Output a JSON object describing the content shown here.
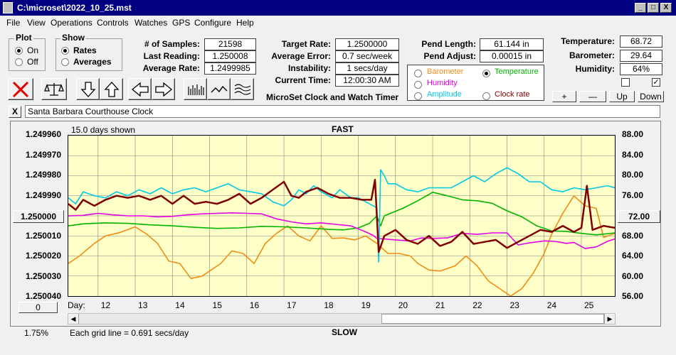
{
  "window": {
    "title": "C:\\microset\\2022_10_25.mst",
    "min": "_",
    "max": "□",
    "close": "X"
  },
  "menu": [
    "File",
    "View",
    "Operations",
    "Controls",
    "Watches",
    "GPS",
    "Configure",
    "Help"
  ],
  "plot_group": {
    "label": "Plot",
    "on": "On",
    "off": "Off",
    "selected": "On"
  },
  "show_group": {
    "label": "Show",
    "rates": "Rates",
    "averages": "Averages",
    "selected": "Rates"
  },
  "stats": {
    "samples_label": "# of Samples:",
    "samples": "21598",
    "last_label": "Last Reading:",
    "last": "1.250008",
    "avg_label": "Average Rate:",
    "avg": "1.2499985",
    "target_label": "Target Rate:",
    "target": "1.2500000",
    "error_label": "Average Error:",
    "error": "0.7 sec/week",
    "instab_label": "Instability:",
    "instab": "1 secs/day",
    "time_label": "Current Time:",
    "time": "12:00:30 AM",
    "pend_label": "Pend Length:",
    "pend": "61.144 in",
    "adjust_label": "Pend Adjust:",
    "adjust": "0.00015 in",
    "temp_label": "Temperature:",
    "temp": "68.72",
    "baro_label": "Barometer:",
    "baro": "29.64",
    "hum_label": "Humidity:",
    "hum": "64%"
  },
  "app_name": "MicroSet Clock and Watch Timer",
  "sensor_options": {
    "barometer": "Barometer",
    "temperature": "Temperature",
    "humidity": "Humidity",
    "amplitude": "Amplitude",
    "clockrate": "Clock rate",
    "selected": "Temperature",
    "colors": {
      "barometer": "#f08c14",
      "temperature": "#00b400",
      "humidity": "#e600e6",
      "amplitude": "#00c8e6",
      "clockrate": "#800000"
    }
  },
  "scale_buttons": {
    "plus": "+",
    "minus": "—",
    "up": "Up",
    "down": "Down"
  },
  "watch_name": "Santa Barbara Courthouse Clock",
  "watch_close": "X",
  "chart": {
    "days_shown": "15.0 days shown",
    "top_label": "FAST",
    "bottom_label": "SLOW",
    "grid_note": "Each grid line = 0.691 secs/day",
    "percent": "1.75%",
    "day_label": "Day:",
    "left_button": "1.250000",
    "right_button": "72.00",
    "bottom_button": "0"
  },
  "chart_data": {
    "type": "line",
    "left_axis": {
      "ticks": [
        "1.249960",
        "1.249970",
        "1.249980",
        "1.249990",
        "1.250000",
        "1.250010",
        "1.250020",
        "1.250030",
        "1.250040"
      ],
      "range": [
        1.24996,
        1.25004
      ]
    },
    "right_axis": {
      "ticks": [
        "88.00",
        "84.00",
        "80.00",
        "76.00",
        "72.00",
        "68.00",
        "64.00",
        "60.00",
        "56.00"
      ],
      "range": [
        88,
        56
      ]
    },
    "x_ticks": [
      "12",
      "13",
      "14",
      "15",
      "16",
      "17",
      "18",
      "19",
      "20",
      "21",
      "22",
      "23",
      "24",
      "25"
    ],
    "x_range": [
      11.2,
      25.9
    ],
    "series": [
      {
        "name": "Barometer",
        "color": "#f08c14",
        "values": [
          [
            11.2,
            62.5
          ],
          [
            11.5,
            64
          ],
          [
            11.9,
            66.5
          ],
          [
            12.2,
            68
          ],
          [
            12.6,
            68.7
          ],
          [
            13.0,
            69.8
          ],
          [
            13.3,
            68.4
          ],
          [
            13.6,
            66.5
          ],
          [
            13.9,
            63
          ],
          [
            14.2,
            62.5
          ],
          [
            14.5,
            59.5
          ],
          [
            14.8,
            60
          ],
          [
            15.1,
            61.5
          ],
          [
            15.3,
            62.5
          ],
          [
            15.6,
            65
          ],
          [
            15.9,
            64.5
          ],
          [
            16.2,
            62.5
          ],
          [
            16.5,
            66.5
          ],
          [
            16.8,
            68.5
          ],
          [
            17.1,
            70
          ],
          [
            17.4,
            68
          ],
          [
            17.7,
            67
          ],
          [
            18.0,
            70
          ],
          [
            18.3,
            67.5
          ],
          [
            18.6,
            67.6
          ],
          [
            18.9,
            67.2
          ],
          [
            19.2,
            68
          ],
          [
            19.5,
            66.5
          ],
          [
            19.8,
            64.5
          ],
          [
            20.1,
            64.5
          ],
          [
            20.4,
            64
          ],
          [
            20.6,
            62.5
          ],
          [
            20.9,
            61.2
          ],
          [
            21.2,
            61
          ],
          [
            21.6,
            62
          ],
          [
            21.9,
            64
          ],
          [
            22.2,
            62
          ],
          [
            22.5,
            59
          ],
          [
            22.8,
            57.5
          ],
          [
            23.1,
            56
          ],
          [
            23.4,
            57.5
          ],
          [
            23.7,
            60.5
          ],
          [
            24.0,
            64.5
          ],
          [
            24.2,
            68.3
          ],
          [
            24.5,
            72.5
          ],
          [
            24.8,
            76
          ],
          [
            25.1,
            74
          ],
          [
            25.4,
            73.5
          ],
          [
            25.6,
            67.7
          ],
          [
            25.9,
            68.5
          ]
        ]
      },
      {
        "name": "Temperature",
        "color": "#00b400",
        "values": [
          [
            11.2,
            70
          ],
          [
            11.6,
            70.4
          ],
          [
            12.2,
            70.6
          ],
          [
            12.8,
            70.5
          ],
          [
            13.4,
            70.2
          ],
          [
            14.0,
            70
          ],
          [
            14.6,
            69.7
          ],
          [
            15.2,
            69.5
          ],
          [
            15.8,
            69.6
          ],
          [
            16.4,
            69.9
          ],
          [
            17.0,
            69.8
          ],
          [
            17.6,
            69.6
          ],
          [
            18.2,
            69.3
          ],
          [
            18.6,
            69.2
          ],
          [
            19.0,
            69.6
          ],
          [
            19.3,
            70.5
          ],
          [
            19.5,
            72
          ],
          [
            19.6,
            70
          ],
          [
            19.7,
            72
          ],
          [
            20.2,
            73.5
          ],
          [
            20.6,
            75
          ],
          [
            21.0,
            76.7
          ],
          [
            21.4,
            76
          ],
          [
            21.8,
            75.2
          ],
          [
            22.2,
            75
          ],
          [
            22.6,
            74.5
          ],
          [
            23.0,
            73
          ],
          [
            23.4,
            71.8
          ],
          [
            23.8,
            70
          ],
          [
            24.2,
            69
          ],
          [
            24.6,
            68.9
          ],
          [
            25.0,
            68.5
          ],
          [
            25.4,
            68.2
          ],
          [
            25.9,
            68.6
          ]
        ]
      },
      {
        "name": "Humidity",
        "color": "#e600e6",
        "values": [
          [
            11.2,
            72
          ],
          [
            11.6,
            72.1
          ],
          [
            12.0,
            72.5
          ],
          [
            12.4,
            72.2
          ],
          [
            12.8,
            72
          ],
          [
            13.2,
            72
          ],
          [
            13.6,
            71.8
          ],
          [
            14.0,
            71.9
          ],
          [
            14.4,
            72.2
          ],
          [
            14.8,
            72.4
          ],
          [
            15.2,
            72.5
          ],
          [
            15.6,
            72.6
          ],
          [
            16.0,
            72.5
          ],
          [
            16.4,
            72.4
          ],
          [
            16.8,
            71.4
          ],
          [
            17.2,
            70.8
          ],
          [
            17.6,
            70.4
          ],
          [
            18.0,
            70.6
          ],
          [
            18.4,
            70.3
          ],
          [
            18.8,
            70
          ],
          [
            19.2,
            68.8
          ],
          [
            19.4,
            68.1
          ],
          [
            19.5,
            67.5
          ],
          [
            19.7,
            67.4
          ],
          [
            20.0,
            67.2
          ],
          [
            20.4,
            67
          ],
          [
            20.7,
            67.6
          ],
          [
            21.0,
            67.5
          ],
          [
            21.4,
            67.6
          ],
          [
            21.8,
            68.5
          ],
          [
            22.2,
            68.3
          ],
          [
            22.6,
            68.6
          ],
          [
            23.0,
            68.6
          ],
          [
            23.3,
            66.2
          ],
          [
            23.6,
            66.6
          ],
          [
            24.0,
            67
          ],
          [
            24.3,
            66.9
          ],
          [
            24.6,
            66.5
          ],
          [
            24.8,
            66.7
          ],
          [
            25.1,
            65.5
          ],
          [
            25.4,
            65.8
          ],
          [
            25.7,
            66.9
          ],
          [
            25.9,
            67.4
          ]
        ]
      },
      {
        "name": "Amplitude",
        "color": "#00c8e6",
        "values": [
          [
            11.2,
            1.249991
          ],
          [
            11.4,
            1.249994
          ],
          [
            11.6,
            1.249988
          ],
          [
            11.9,
            1.24999
          ],
          [
            12.2,
            1.249991
          ],
          [
            12.5,
            1.249988
          ],
          [
            12.8,
            1.24999
          ],
          [
            13.1,
            1.249987
          ],
          [
            13.4,
            1.249989
          ],
          [
            13.7,
            1.249986
          ],
          [
            14.0,
            1.249989
          ],
          [
            14.3,
            1.249987
          ],
          [
            14.6,
            1.249986
          ],
          [
            14.9,
            1.249988
          ],
          [
            15.2,
            1.249986
          ],
          [
            15.5,
            1.249984
          ],
          [
            15.8,
            1.249987
          ],
          [
            16.1,
            1.249988
          ],
          [
            16.4,
            1.249989
          ],
          [
            16.7,
            1.249993
          ],
          [
            17.0,
            1.249995
          ],
          [
            17.2,
            1.249992
          ],
          [
            17.4,
            1.249987
          ],
          [
            17.6,
            1.249989
          ],
          [
            17.8,
            1.249985
          ],
          [
            18.0,
            1.249988
          ],
          [
            18.3,
            1.249991
          ],
          [
            18.5,
            1.249987
          ],
          [
            18.8,
            1.249991
          ],
          [
            19.0,
            1.249991
          ],
          [
            19.3,
            1.249994
          ],
          [
            19.5,
            1.249996
          ],
          [
            19.55,
            1.250023
          ],
          [
            19.6,
            1.249977
          ],
          [
            19.7,
            1.24998
          ],
          [
            19.8,
            1.249984
          ],
          [
            20.0,
            1.249984
          ],
          [
            20.3,
            1.249987
          ],
          [
            20.6,
            1.249988
          ],
          [
            20.9,
            1.249986
          ],
          [
            21.2,
            1.249986
          ],
          [
            21.5,
            1.249986
          ],
          [
            21.8,
            1.249983
          ],
          [
            22.1,
            1.24998
          ],
          [
            22.4,
            1.249983
          ],
          [
            22.7,
            1.249979
          ],
          [
            23.0,
            1.249976
          ],
          [
            23.3,
            1.249979
          ],
          [
            23.6,
            1.249983
          ],
          [
            23.9,
            1.249983
          ],
          [
            24.2,
            1.249987
          ],
          [
            24.5,
            1.249988
          ],
          [
            24.8,
            1.249986
          ],
          [
            25.1,
            1.249987
          ],
          [
            25.4,
            1.249986
          ],
          [
            25.7,
            1.249985
          ],
          [
            25.9,
            1.249986
          ]
        ]
      },
      {
        "name": "Clock rate",
        "color": "#800000",
        "values": [
          [
            11.2,
            1.249994
          ],
          [
            11.4,
            1.249997
          ],
          [
            11.6,
            1.249992
          ],
          [
            11.9,
            1.249995
          ],
          [
            12.2,
            1.249992
          ],
          [
            12.5,
            1.24999
          ],
          [
            12.8,
            1.249991
          ],
          [
            13.1,
            1.24999
          ],
          [
            13.4,
            1.249992
          ],
          [
            13.7,
            1.24999
          ],
          [
            14.0,
            1.249994
          ],
          [
            14.3,
            1.24999
          ],
          [
            14.6,
            1.249994
          ],
          [
            14.9,
            1.249993
          ],
          [
            15.2,
            1.249994
          ],
          [
            15.5,
            1.249992
          ],
          [
            15.8,
            1.249989
          ],
          [
            16.1,
            1.249994
          ],
          [
            16.4,
            1.249991
          ],
          [
            16.7,
            1.249987
          ],
          [
            17.0,
            1.249983
          ],
          [
            17.2,
            1.24999
          ],
          [
            17.4,
            1.249991
          ],
          [
            17.6,
            1.249988
          ],
          [
            17.9,
            1.249986
          ],
          [
            18.2,
            1.249989
          ],
          [
            18.5,
            1.249991
          ],
          [
            18.8,
            1.249991
          ],
          [
            19.1,
            1.249992
          ],
          [
            19.35,
            1.249992
          ],
          [
            19.45,
            1.249982
          ],
          [
            19.55,
            1.250018
          ],
          [
            19.7,
            1.25001
          ],
          [
            20.0,
            1.250007
          ],
          [
            20.3,
            1.250012
          ],
          [
            20.6,
            1.250014
          ],
          [
            20.9,
            1.25001
          ],
          [
            21.2,
            1.250015
          ],
          [
            21.5,
            1.250013
          ],
          [
            21.8,
            1.250008
          ],
          [
            22.1,
            1.250014
          ],
          [
            22.4,
            1.250013
          ],
          [
            22.7,
            1.250012
          ],
          [
            23.0,
            1.250016
          ],
          [
            23.3,
            1.250013
          ],
          [
            23.6,
            1.25001
          ],
          [
            23.9,
            1.250007
          ],
          [
            24.2,
            1.250008
          ],
          [
            24.5,
            1.250005
          ],
          [
            24.8,
            1.250008
          ],
          [
            25.0,
            1.250006
          ],
          [
            25.15,
            1.249985
          ],
          [
            25.3,
            1.250007
          ],
          [
            25.6,
            1.250005
          ],
          [
            25.9,
            1.250006
          ]
        ]
      }
    ]
  }
}
